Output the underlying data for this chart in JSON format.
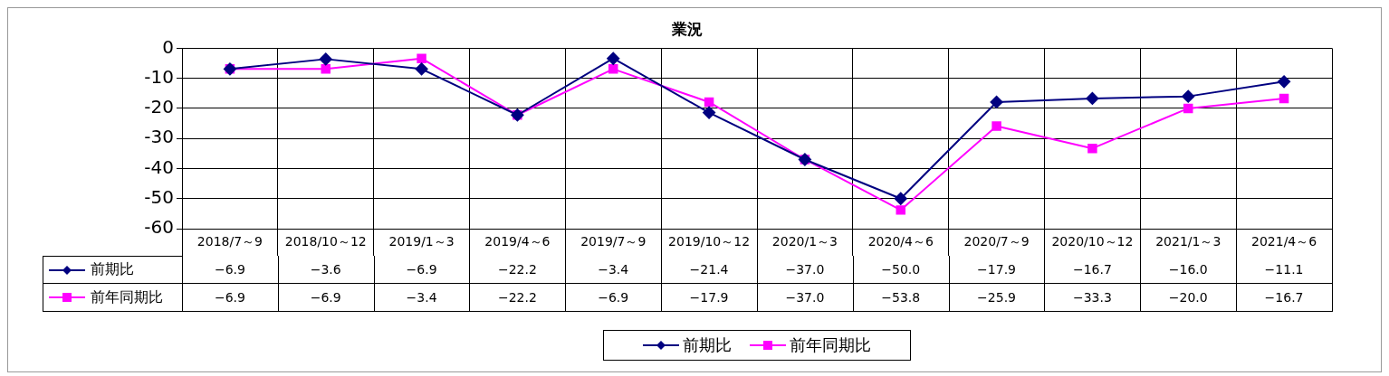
{
  "chart_data": {
    "type": "line",
    "title": "業況",
    "categories": [
      "2018/7～9",
      "2018/10～12",
      "2019/1～3",
      "2019/4～6",
      "2019/7～9",
      "2019/10～12",
      "2020/1～3",
      "2020/4～6",
      "2020/7～9",
      "2020/10～12",
      "2021/1～3",
      "2021/4～6"
    ],
    "series": [
      {
        "name": "前期比",
        "color": "#000080",
        "marker": "diamond",
        "values": [
          -6.9,
          -3.6,
          -6.9,
          -22.2,
          -3.4,
          -21.4,
          -37.0,
          -50.0,
          -17.9,
          -16.7,
          -16.0,
          -11.1
        ],
        "value_labels": [
          "−6.9",
          "−3.6",
          "−6.9",
          "−22.2",
          "−3.4",
          "−21.4",
          "−37.0",
          "−50.0",
          "−17.9",
          "−16.7",
          "−16.0",
          "−11.1"
        ]
      },
      {
        "name": "前年同期比",
        "color": "#ff00ff",
        "marker": "square",
        "values": [
          -6.9,
          -6.9,
          -3.4,
          -22.2,
          -6.9,
          -17.9,
          -37.0,
          -53.8,
          -25.9,
          -33.3,
          -20.0,
          -16.7
        ],
        "value_labels": [
          "−6.9",
          "−6.9",
          "−3.4",
          "−22.2",
          "−6.9",
          "−17.9",
          "−37.0",
          "−53.8",
          "−25.9",
          "−33.3",
          "−20.0",
          "−16.7"
        ]
      }
    ],
    "ylim": [
      -60,
      0
    ],
    "yticks": [
      0,
      -10,
      -20,
      -30,
      -40,
      -50,
      -60
    ],
    "grid": true,
    "legend": "bottom",
    "line_style": "solid"
  }
}
